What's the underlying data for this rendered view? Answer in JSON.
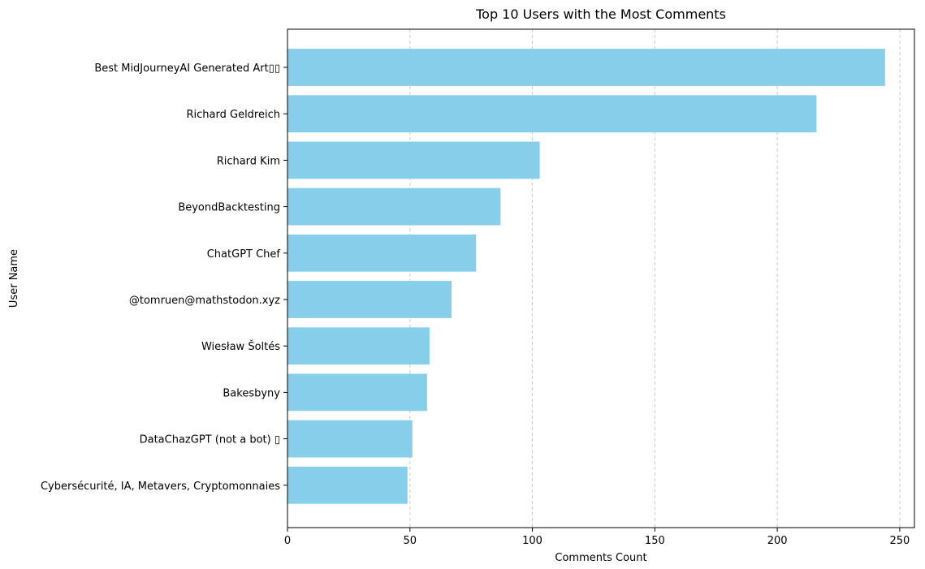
{
  "chart_data": {
    "type": "bar",
    "orientation": "horizontal",
    "title": "Top 10 Users with the Most Comments",
    "xlabel": "Comments Count",
    "ylabel": "User Name",
    "categories": [
      "Best MidJourneyAI Generated Art▯▯",
      "Richard Geldreich",
      "Richard Kim",
      "BeyondBacktesting",
      "ChatGPT Chef",
      "@tomruen@mathstodon.xyz",
      "Wiesław Šoltés",
      "Bakesbyny",
      "DataChazGPT (not a bot) ▯",
      "Cybersécurité, IA, Metavers, Cryptomonnaies"
    ],
    "values": [
      244,
      216,
      103,
      87,
      77,
      67,
      58,
      57,
      51,
      49
    ],
    "xlim": [
      0,
      256
    ],
    "xticks": [
      0,
      50,
      100,
      150,
      200,
      250
    ],
    "grid": "x-axis dashed",
    "bar_color": "#87ceeb"
  }
}
